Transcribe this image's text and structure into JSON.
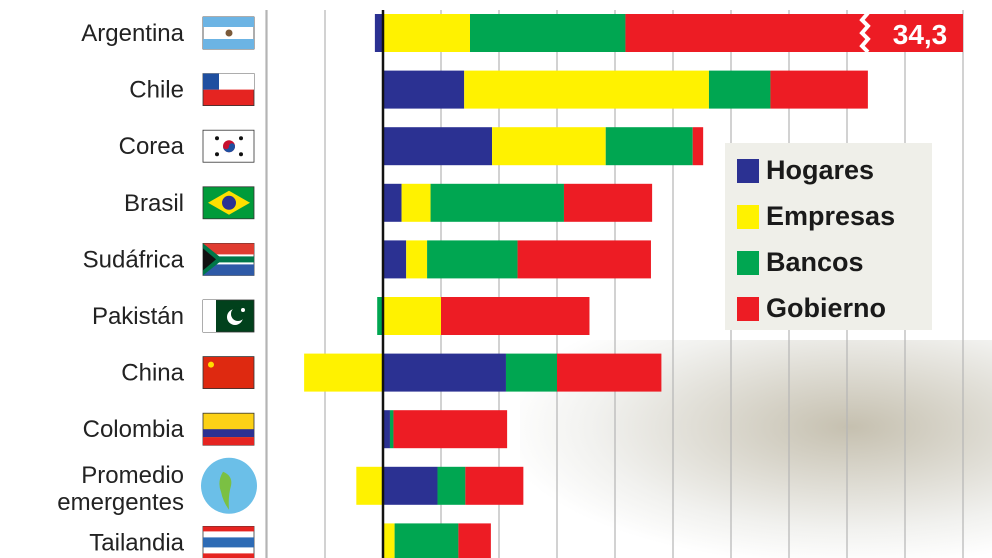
{
  "chart_data": {
    "type": "bar",
    "orientation": "horizontal",
    "stacked": true,
    "title": "",
    "xlabel": "",
    "ylabel": "",
    "grid": true,
    "legend_position": "right",
    "categories": [
      "Argentina",
      "Chile",
      "Corea",
      "Brasil",
      "Sudáfrica",
      "Pakistán",
      "China",
      "Colombia",
      "Promedio emergentes",
      "Tailandia"
    ],
    "category_icons": [
      "flag-argentina",
      "flag-chile",
      "flag-korea",
      "flag-brazil",
      "flag-south-africa",
      "flag-pakistan",
      "flag-china",
      "flag-colombia",
      "globe",
      "flag-thailand"
    ],
    "series": [
      {
        "name": "Hogares",
        "color": "#2b3192",
        "values": [
          -0.7,
          7.0,
          9.4,
          1.6,
          2.0,
          0,
          10.6,
          0.6,
          4.7,
          0
        ]
      },
      {
        "name": "Empresas",
        "color": "#fff200",
        "values": [
          7.5,
          21.1,
          9.8,
          2.5,
          1.8,
          5.0,
          -6.8,
          0,
          -2.3,
          1.0
        ]
      },
      {
        "name": "Bancos",
        "color": "#00a651",
        "values": [
          13.4,
          5.3,
          7.5,
          11.5,
          7.8,
          -0.5,
          4.4,
          0.3,
          2.4,
          5.5
        ]
      },
      {
        "name": "Gobierno",
        "color": "#ed1c24",
        "values": [
          34.3,
          8.4,
          0.9,
          7.6,
          11.5,
          12.8,
          9.0,
          9.8,
          5.0,
          2.8
        ]
      }
    ],
    "annotations": [
      {
        "category": "Argentina",
        "text": "34,3",
        "note": "bar truncated"
      }
    ]
  }
}
